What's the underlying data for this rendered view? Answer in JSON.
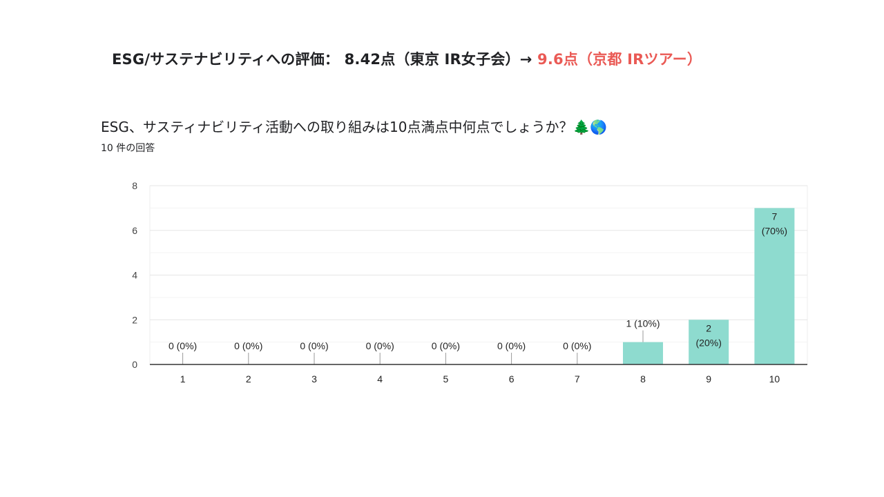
{
  "headline": {
    "main": "ESG/サステナビリティへの評価： 8.42点（東京 IR女子会）→ ",
    "accent": "9.6点（京都 IRツアー）"
  },
  "question": {
    "title": "ESG、サスティナビリティ活動への取り組みは10点満点中何点でしょうか？🌲🌎",
    "response_count": "10 件の回答"
  },
  "colors": {
    "bar": "#8edbcf",
    "accent": "#ea5a55"
  },
  "chart_data": {
    "type": "bar",
    "categories": [
      "1",
      "2",
      "3",
      "4",
      "5",
      "6",
      "7",
      "8",
      "9",
      "10"
    ],
    "values": [
      0,
      0,
      0,
      0,
      0,
      0,
      0,
      1,
      2,
      7
    ],
    "percents": [
      "0%",
      "0%",
      "0%",
      "0%",
      "0%",
      "0%",
      "0%",
      "10%",
      "20%",
      "70%"
    ],
    "labels": [
      "0 (0%)",
      "0 (0%)",
      "0 (0%)",
      "0 (0%)",
      "0 (0%)",
      "0 (0%)",
      "0 (0%)",
      "1 (10%)",
      "2 (20%)",
      "7 (70%)"
    ],
    "yticks": [
      0,
      2,
      4,
      6,
      8
    ],
    "ylim": [
      0,
      8
    ],
    "grid": true,
    "title": "",
    "xlabel": "",
    "ylabel": ""
  }
}
